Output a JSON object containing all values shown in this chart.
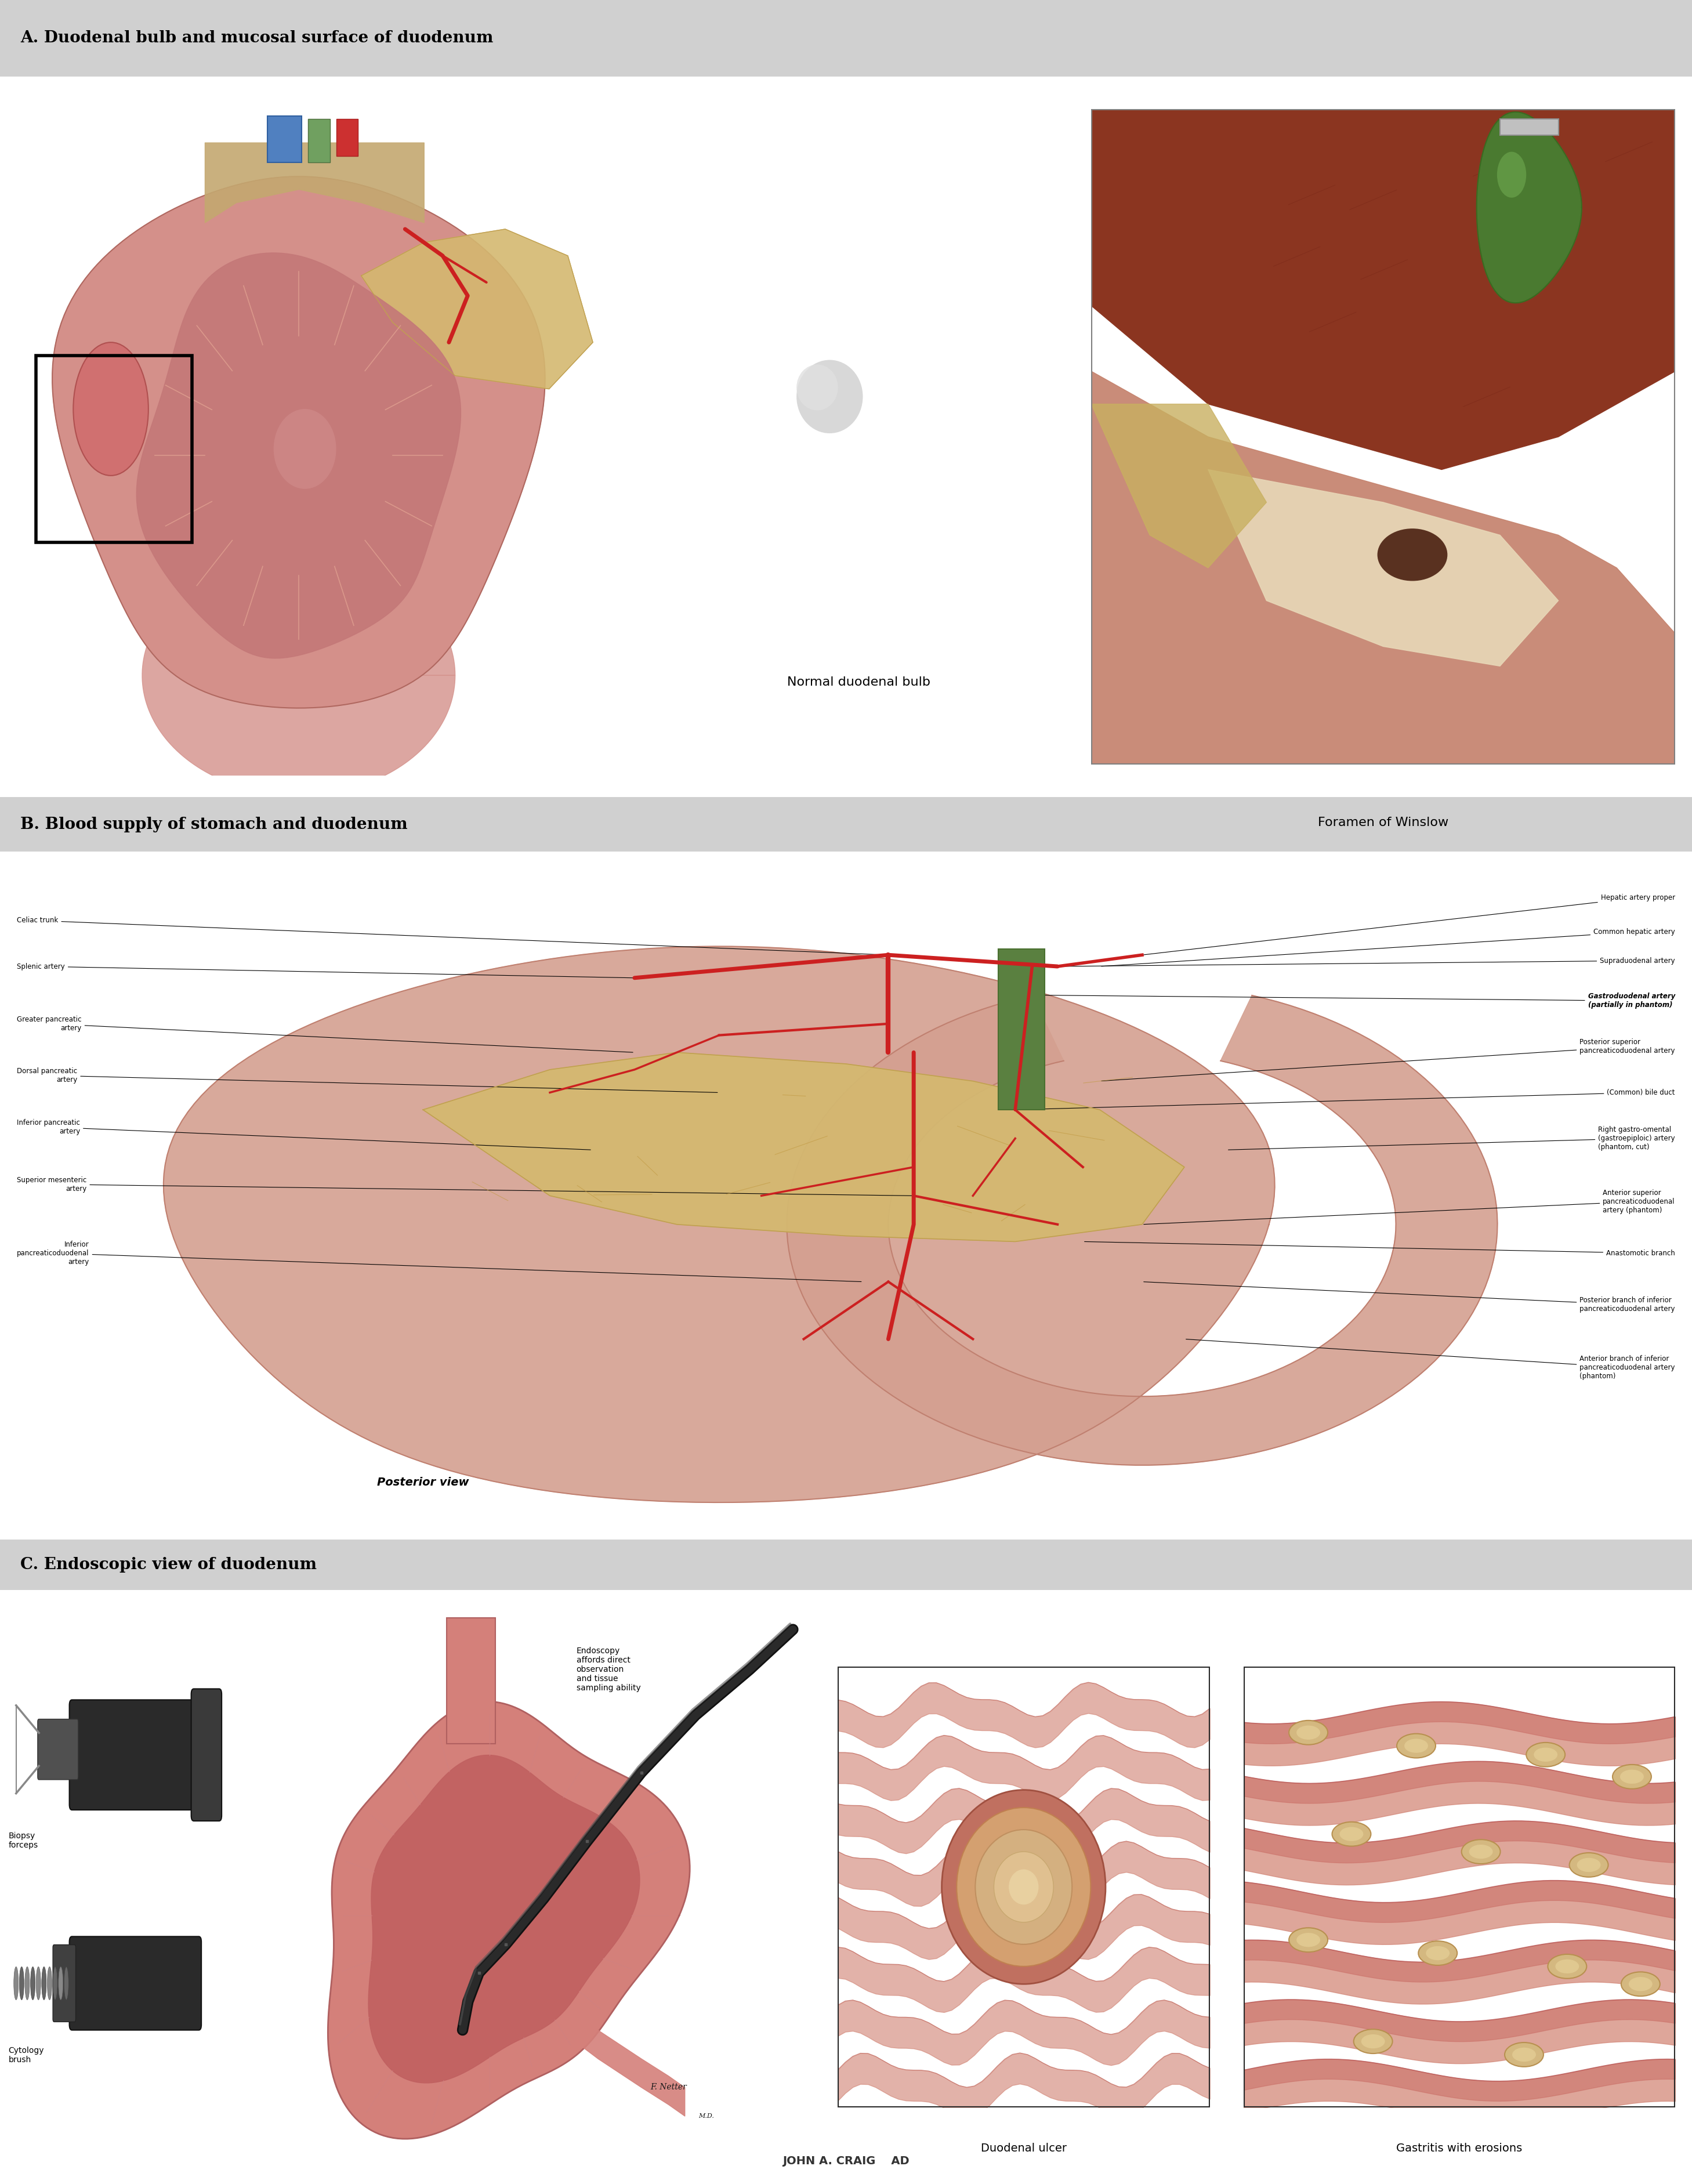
{
  "bg_color": "#e0e0e0",
  "white": "#ffffff",
  "section_header_bg": "#d0d0d0",
  "section_A_title": "A. Duodenal bulb and mucosal surface of duodenum",
  "section_B_title": "B. Blood supply of stomach and duodenum",
  "section_C_title": "C. Endoscopic view of duodenum",
  "label_normal_duodenal_bulb": "Normal duodenal bulb",
  "label_foramen_winslow": "Foramen of Winslow",
  "label_posterior_view": "Posterior view",
  "label_biopsy_forceps": "Biopsy\nforceps",
  "label_cytology_brush": "Cytology\nbrush",
  "label_endoscopy": "Endoscopy\naffords direct\nobservation\nand tissue\nsampling ability",
  "label_duodenal_ulcer": "Duodenal ulcer",
  "label_gastritis": "Gastritis with erosions",
  "credit": "JOHN A. CRAIG    AD",
  "right_labels": [
    "Hepatic artery proper",
    "Common hepatic artery",
    "Supraduodenal artery",
    "Gastroduodenal artery\n(partially in phantom)",
    "Posterior superior\npancreaticoduodenal artery",
    "(Common) bile duct",
    "Right gastro-omental\n(gastroepiploic) artery\n(phantom, cut)",
    "Anterior superior\npancreaticoduodenal\nartery (phantom)",
    "Anastomotic branch",
    "Posterior branch of inferior\npancreaticoduodenal artery",
    "Anterior branch of inferior\npancreaticoduodenal artery\n(phantom)"
  ],
  "left_labels": [
    "Celiac trunk",
    "Splenic artery",
    "Greater pancreatic\nartery",
    "Dorsal pancreatic\nartery",
    "Inferior pancreatic\nartery",
    "Superior mesenteric\nartery",
    "Inferior\npancreaticoduodenal\nartery"
  ],
  "skin_light": "#e8b090",
  "skin_mid": "#d49070",
  "skin_dark": "#c07050",
  "pink_light": "#e8c0b0",
  "pink_mid": "#d4908a",
  "pink_dark": "#c07070",
  "red_artery": "#cc2020",
  "pancreas_color": "#d4b870",
  "green_duct": "#5a8040",
  "liver_color": "#8B3520",
  "gb_color": "#4a7a30",
  "xray_bg": "#1a1a1a",
  "dark_tube": "#1a1a1a",
  "mucosal_red": "#c05050",
  "mucosal_light": "#d08878",
  "ulcer_tan": "#d4b080",
  "erosion_color": "#c8a060"
}
